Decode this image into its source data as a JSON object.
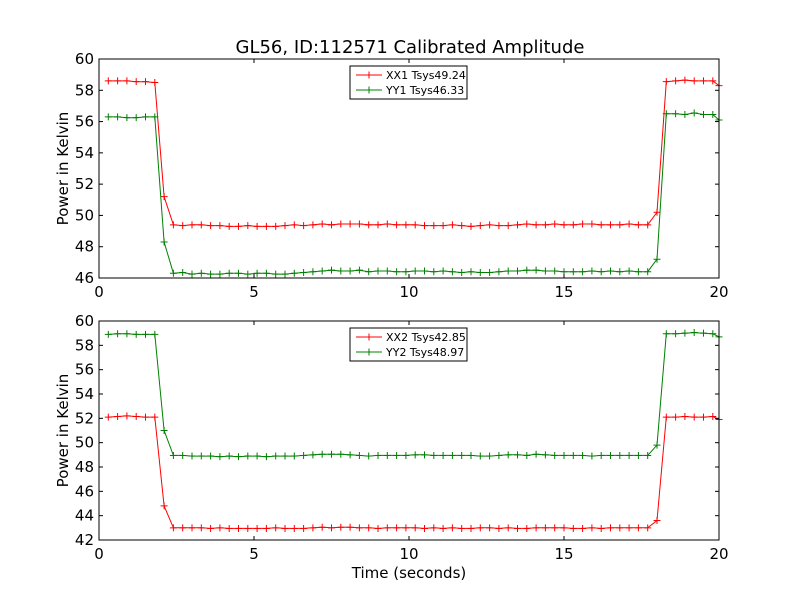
{
  "title": "GL56, ID:112571 Calibrated Amplitude",
  "chart_data": [
    {
      "type": "line",
      "ylabel": "Power in Kelvin",
      "xlabel": "",
      "xlim": [
        0,
        20
      ],
      "ylim": [
        46,
        60
      ],
      "xticks": [
        "0",
        "5",
        "10",
        "15",
        "20"
      ],
      "yticks": [
        "46",
        "48",
        "50",
        "52",
        "54",
        "56",
        "58",
        "60"
      ],
      "legend_position": "top-center",
      "grid": false,
      "x": [
        0.3,
        0.6,
        0.9,
        1.2,
        1.5,
        1.8,
        2.1,
        2.4,
        2.7,
        3.0,
        3.3,
        3.6,
        3.9,
        4.2,
        4.5,
        4.8,
        5.1,
        5.4,
        5.7,
        6.0,
        6.3,
        6.6,
        6.9,
        7.2,
        7.5,
        7.8,
        8.1,
        8.4,
        8.7,
        9.0,
        9.3,
        9.6,
        9.9,
        10.2,
        10.5,
        10.8,
        11.1,
        11.4,
        11.7,
        12.0,
        12.3,
        12.6,
        12.9,
        13.2,
        13.5,
        13.8,
        14.1,
        14.4,
        14.7,
        15.0,
        15.3,
        15.6,
        15.9,
        16.2,
        16.5,
        16.8,
        17.1,
        17.4,
        17.7,
        18.0,
        18.3,
        18.6,
        18.9,
        19.2,
        19.5,
        19.8,
        20.0
      ],
      "series": [
        {
          "name": "XX1 Tsys49.24",
          "color": "#ff0000",
          "values": [
            58.6,
            58.6,
            58.6,
            58.55,
            58.55,
            58.5,
            51.2,
            49.4,
            49.35,
            49.4,
            49.4,
            49.35,
            49.35,
            49.3,
            49.3,
            49.35,
            49.3,
            49.3,
            49.3,
            49.35,
            49.4,
            49.35,
            49.4,
            49.45,
            49.4,
            49.45,
            49.45,
            49.45,
            49.4,
            49.4,
            49.45,
            49.4,
            49.4,
            49.4,
            49.35,
            49.35,
            49.35,
            49.4,
            49.35,
            49.3,
            49.35,
            49.4,
            49.35,
            49.35,
            49.4,
            49.45,
            49.4,
            49.4,
            49.45,
            49.4,
            49.4,
            49.45,
            49.45,
            49.4,
            49.4,
            49.4,
            49.45,
            49.4,
            49.4,
            50.2,
            58.55,
            58.6,
            58.65,
            58.6,
            58.6,
            58.6,
            58.3
          ]
        },
        {
          "name": "YY1 Tsys46.33",
          "color": "#008000",
          "values": [
            56.3,
            56.3,
            56.25,
            56.25,
            56.3,
            56.3,
            48.3,
            46.3,
            46.35,
            46.25,
            46.3,
            46.25,
            46.25,
            46.3,
            46.3,
            46.25,
            46.3,
            46.3,
            46.25,
            46.25,
            46.3,
            46.35,
            46.4,
            46.45,
            46.5,
            46.45,
            46.45,
            46.5,
            46.4,
            46.45,
            46.45,
            46.4,
            46.4,
            46.45,
            46.45,
            46.4,
            46.45,
            46.4,
            46.35,
            46.4,
            46.35,
            46.35,
            46.4,
            46.45,
            46.45,
            46.5,
            46.5,
            46.45,
            46.45,
            46.4,
            46.4,
            46.4,
            46.45,
            46.4,
            46.45,
            46.4,
            46.45,
            46.4,
            46.4,
            47.2,
            56.5,
            56.5,
            56.45,
            56.55,
            56.45,
            56.45,
            56.1
          ]
        }
      ]
    },
    {
      "type": "line",
      "ylabel": "Power in Kelvin",
      "xlabel": "Time (seconds)",
      "xlim": [
        0,
        20
      ],
      "ylim": [
        42,
        60
      ],
      "xticks": [
        "0",
        "5",
        "10",
        "15",
        "20"
      ],
      "yticks": [
        "42",
        "44",
        "46",
        "48",
        "50",
        "52",
        "54",
        "56",
        "58",
        "60"
      ],
      "legend_position": "top-center",
      "grid": false,
      "x": [
        0.3,
        0.6,
        0.9,
        1.2,
        1.5,
        1.8,
        2.1,
        2.4,
        2.7,
        3.0,
        3.3,
        3.6,
        3.9,
        4.2,
        4.5,
        4.8,
        5.1,
        5.4,
        5.7,
        6.0,
        6.3,
        6.6,
        6.9,
        7.2,
        7.5,
        7.8,
        8.1,
        8.4,
        8.7,
        9.0,
        9.3,
        9.6,
        9.9,
        10.2,
        10.5,
        10.8,
        11.1,
        11.4,
        11.7,
        12.0,
        12.3,
        12.6,
        12.9,
        13.2,
        13.5,
        13.8,
        14.1,
        14.4,
        14.7,
        15.0,
        15.3,
        15.6,
        15.9,
        16.2,
        16.5,
        16.8,
        17.1,
        17.4,
        17.7,
        18.0,
        18.3,
        18.6,
        18.9,
        19.2,
        19.5,
        19.8,
        20.0
      ],
      "series": [
        {
          "name": "XX2 Tsys42.85",
          "color": "#ff0000",
          "values": [
            52.1,
            52.15,
            52.2,
            52.15,
            52.1,
            52.1,
            44.8,
            43.0,
            43.0,
            43.0,
            43.0,
            42.95,
            43.0,
            42.95,
            42.95,
            42.95,
            42.95,
            42.95,
            43.0,
            42.95,
            42.95,
            42.95,
            43.0,
            43.05,
            43.0,
            43.05,
            43.05,
            43.0,
            43.0,
            42.95,
            43.0,
            43.0,
            43.0,
            43.0,
            42.95,
            43.0,
            42.95,
            43.0,
            42.95,
            42.95,
            43.0,
            43.0,
            42.95,
            43.0,
            42.95,
            42.95,
            43.0,
            43.0,
            43.0,
            43.0,
            42.95,
            42.95,
            43.0,
            42.95,
            43.0,
            43.0,
            43.0,
            43.0,
            43.0,
            43.6,
            52.1,
            52.1,
            52.15,
            52.1,
            52.1,
            52.15,
            51.9
          ]
        },
        {
          "name": "YY2 Tsys48.97",
          "color": "#008000",
          "values": [
            58.9,
            58.95,
            58.95,
            58.9,
            58.9,
            58.9,
            51.0,
            48.95,
            48.95,
            48.9,
            48.9,
            48.9,
            48.85,
            48.9,
            48.85,
            48.9,
            48.9,
            48.85,
            48.9,
            48.9,
            48.9,
            48.95,
            49.0,
            49.05,
            49.05,
            49.05,
            49.0,
            48.95,
            48.9,
            48.95,
            48.95,
            48.95,
            48.95,
            49.0,
            49.0,
            48.95,
            48.95,
            48.95,
            48.95,
            48.95,
            48.9,
            48.9,
            48.95,
            49.0,
            49.0,
            48.95,
            49.05,
            49.0,
            48.95,
            48.95,
            48.95,
            48.95,
            48.9,
            48.95,
            48.95,
            48.95,
            48.95,
            48.95,
            48.95,
            49.8,
            58.95,
            58.95,
            59.0,
            59.05,
            59.0,
            58.95,
            58.7
          ]
        }
      ]
    }
  ]
}
